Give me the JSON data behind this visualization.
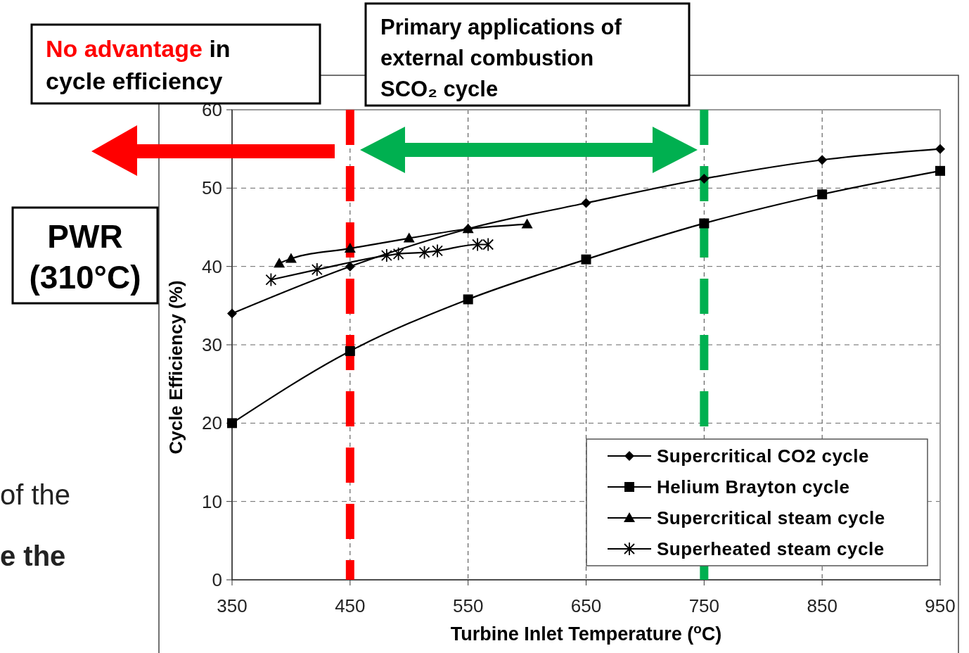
{
  "chart_data": {
    "type": "line",
    "xlabel": "Turbine Inlet Temperature ($^{o}$C)",
    "ylabel": "Cycle Efficiency (%)",
    "xlim": [
      350,
      950
    ],
    "xticks": [
      350,
      450,
      550,
      650,
      750,
      850,
      950
    ],
    "ylim": [
      0,
      60
    ],
    "yticks": [
      0,
      10,
      20,
      30,
      40,
      50,
      60
    ],
    "grid": true,
    "legend": "bottom right",
    "line_style": "solid",
    "series": [
      {
        "name": "Supercritical CO2 cycle",
        "color": "#000000",
        "marker": "diamond",
        "x": [
          350,
          450,
          550,
          650,
          750,
          850,
          950
        ],
        "values": [
          34,
          40,
          44.8,
          48.1,
          51.2,
          53.6,
          55
        ]
      },
      {
        "name": "Helium Brayton cycle",
        "color": "#000000",
        "marker": "square",
        "x": [
          350,
          450,
          550,
          650,
          750,
          850,
          950
        ],
        "values": [
          20,
          29.2,
          35.8,
          40.9,
          45.5,
          49.2,
          52.2
        ]
      },
      {
        "name": "Supercritical steam cycle",
        "color": "#000000",
        "marker": "triangle",
        "x": [
          390,
          400,
          450,
          500,
          550,
          600
        ],
        "values": [
          40.4,
          41,
          42.3,
          43.6,
          44.8,
          45.4
        ]
      },
      {
        "name": "Superheated steam cycle",
        "color": "#000000",
        "marker": "cross",
        "x": [
          383,
          422,
          481,
          491,
          513,
          524,
          558,
          567
        ],
        "values": [
          38.3,
          39.6,
          41.4,
          41.6,
          41.8,
          42,
          42.8,
          42.8
        ]
      }
    ],
    "ref_lines": [
      {
        "axis": "x",
        "value": 450,
        "color": "#ff0000",
        "line_style": "dashed"
      },
      {
        "axis": "x",
        "value": 750,
        "color": "#00b050",
        "line_style": "dashed"
      }
    ],
    "annotations": [
      "No advantage",
      "in cycle efficiency",
      "Primary applications of external combustion SCO₂ cycle",
      "PWR (310°C)",
      "of the",
      "e the"
    ]
  }
}
